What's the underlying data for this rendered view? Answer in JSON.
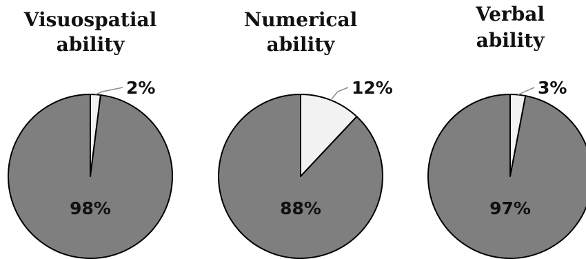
{
  "chart_data": [
    {
      "type": "pie",
      "title_lines": [
        "Visuospatial",
        "ability"
      ],
      "categories": [
        "",
        ""
      ],
      "values": [
        2,
        98
      ],
      "labels": [
        "2%",
        "98%"
      ],
      "colors": [
        "#f2f2f2",
        "#7f7f7f"
      ]
    },
    {
      "type": "pie",
      "title_lines": [
        "Numerical",
        "ability"
      ],
      "categories": [
        "",
        ""
      ],
      "values": [
        12,
        88
      ],
      "labels": [
        "12%",
        "88%"
      ],
      "colors": [
        "#f2f2f2",
        "#7f7f7f"
      ]
    },
    {
      "type": "pie",
      "title_lines": [
        "Verbal",
        "ability"
      ],
      "categories": [
        "",
        ""
      ],
      "values": [
        3,
        97
      ],
      "labels": [
        "3%",
        "97%"
      ],
      "colors": [
        "#f2f2f2",
        "#7f7f7f"
      ]
    }
  ]
}
